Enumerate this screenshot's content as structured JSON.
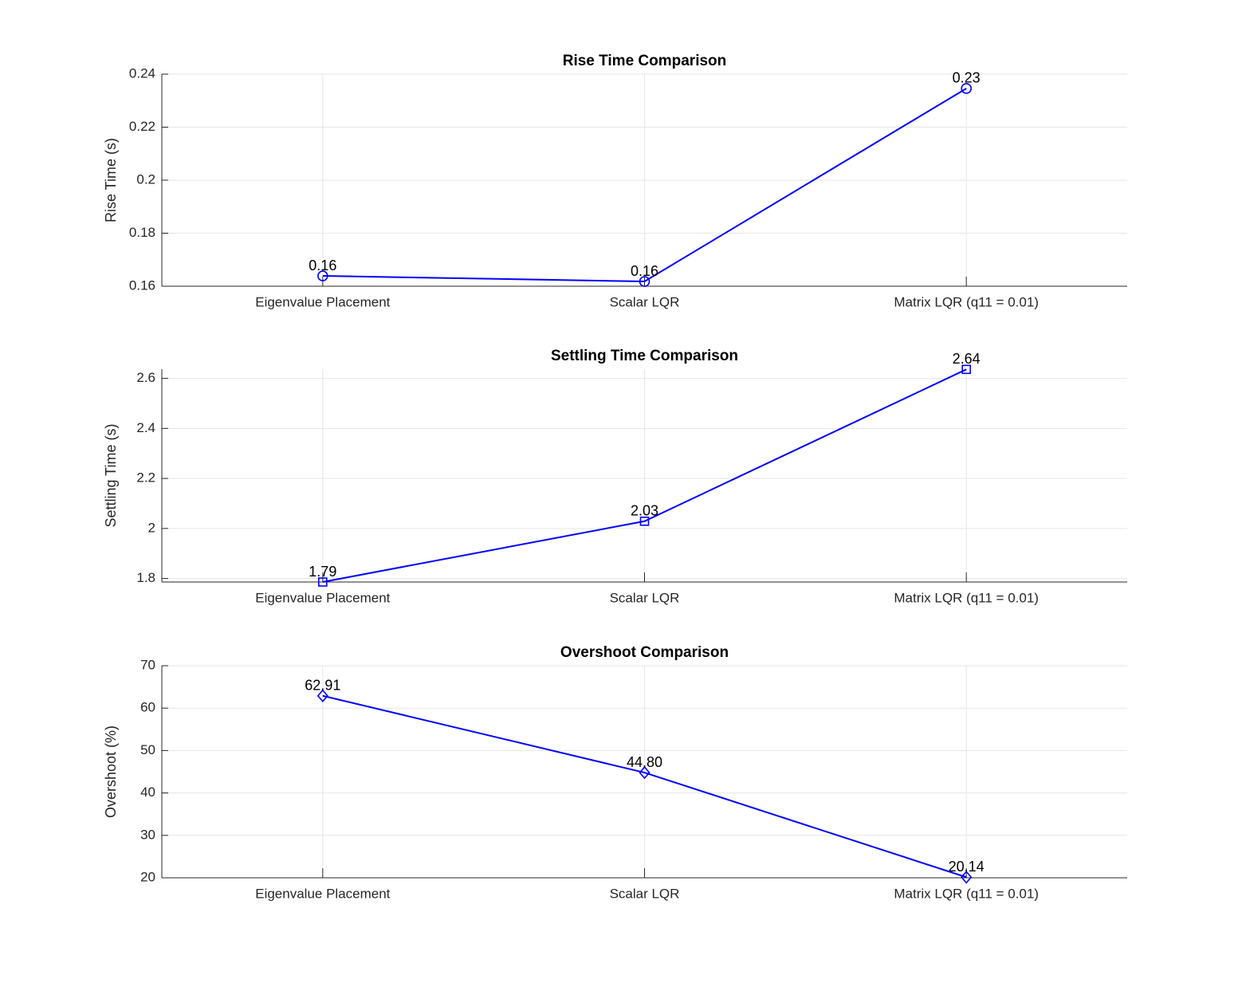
{
  "chart_data": [
    {
      "type": "line",
      "title": "Rise Time Comparison",
      "ylabel": "Rise Time (s)",
      "categories": [
        "Eigenvalue Placement",
        "Scalar LQR",
        "Matrix LQR (q11 = 0.01)"
      ],
      "values": [
        0.1639,
        0.1618,
        0.2346
      ],
      "value_labels": [
        "0.16",
        "0.16",
        "0.23"
      ],
      "ylim": [
        0.16,
        0.24
      ],
      "yticks": [
        0.16,
        0.18,
        0.2,
        0.22,
        0.24
      ],
      "grid": true,
      "color": "#0000ff",
      "marker": "circle"
    },
    {
      "type": "line",
      "title": "Settling Time Comparison",
      "ylabel": "Settling Time (s)",
      "categories": [
        "Eigenvalue Placement",
        "Scalar LQR",
        "Matrix LQR (q11 = 0.01)"
      ],
      "values": [
        1.786,
        2.029,
        2.636
      ],
      "value_labels": [
        "1.79",
        "2.03",
        "2.64"
      ],
      "ylim": [
        1.786,
        2.637
      ],
      "yticks": [
        1.8,
        2,
        2.2,
        2.4,
        2.6
      ],
      "grid": true,
      "color": "#0000ff",
      "marker": "square"
    },
    {
      "type": "line",
      "title": "Overshoot Comparison",
      "ylabel": "Overshoot (%)",
      "categories": [
        "Eigenvalue Placement",
        "Scalar LQR",
        "Matrix LQR (q11 = 0.01)"
      ],
      "values": [
        62.91,
        44.8,
        20.14
      ],
      "value_labels": [
        "62.91",
        "44.80",
        "20.14"
      ],
      "ylim": [
        20,
        70
      ],
      "yticks": [
        20,
        30,
        40,
        50,
        60,
        70
      ],
      "grid": true,
      "color": "#0000ff",
      "marker": "diamond"
    }
  ]
}
